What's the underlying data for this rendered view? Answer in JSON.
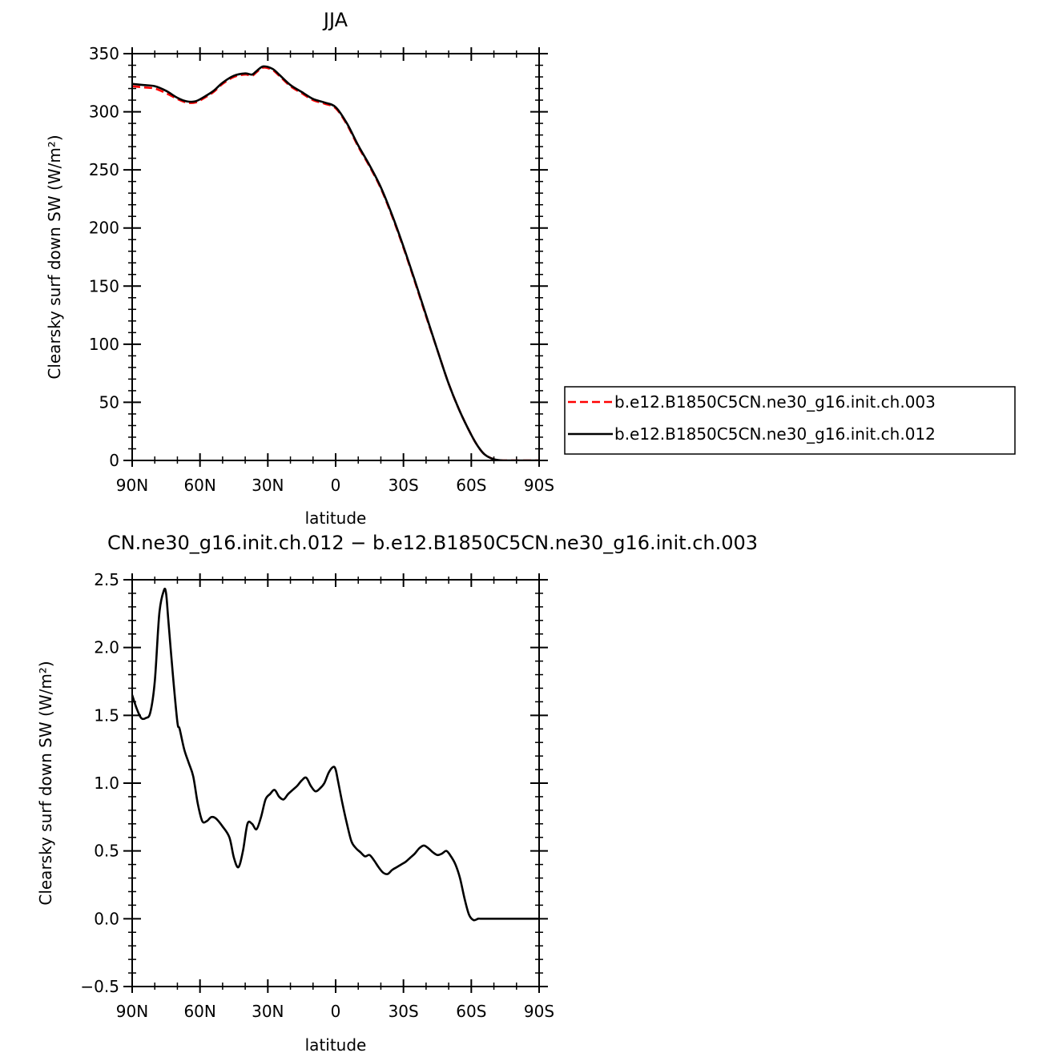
{
  "chart_data": [
    {
      "type": "line",
      "title": "JJA",
      "xlabel": "latitude",
      "ylabel": "Clearsky surf down SW (W/m²)",
      "xlim": [
        90,
        -90
      ],
      "ylim": [
        0,
        350
      ],
      "xticks": [
        90,
        60,
        30,
        0,
        -30,
        -60,
        -90
      ],
      "xtick_labels": [
        "90N",
        "60N",
        "30N",
        "0",
        "30S",
        "60S",
        "90S"
      ],
      "yticks": [
        0,
        50,
        100,
        150,
        200,
        250,
        300,
        350
      ],
      "ytick_labels": [
        "0",
        "50",
        "100",
        "150",
        "200",
        "250",
        "300",
        "350"
      ],
      "legend": "right",
      "series": [
        {
          "name": "b.e12.B1850C5CN.ne30_g16.init.ch.003",
          "color": "#ff0000",
          "dash": "dashed",
          "x": [
            90,
            85,
            80,
            75,
            70,
            66,
            62,
            58,
            54,
            50,
            45,
            40,
            37,
            35,
            32,
            28,
            25,
            20,
            15,
            10,
            5,
            0,
            -5,
            -10,
            -15,
            -20,
            -25,
            -30,
            -35,
            -40,
            -45,
            -50,
            -55,
            -60,
            -63,
            -66,
            -70,
            -74,
            -78,
            -82,
            -86,
            -90
          ],
          "y": [
            322,
            321,
            320,
            316,
            311,
            308,
            308,
            312,
            317,
            324,
            330,
            332,
            331,
            334,
            338,
            336,
            331,
            322,
            316,
            310,
            307,
            303,
            289,
            270,
            253,
            234,
            210,
            183,
            154,
            124,
            95,
            66,
            42,
            22,
            12,
            5,
            1,
            0,
            0,
            0,
            0,
            0
          ]
        },
        {
          "name": "b.e12.B1850C5CN.ne30_g16.init.ch.012",
          "color": "#000000",
          "dash": "solid",
          "x": [
            90,
            85,
            80,
            75,
            70,
            66,
            62,
            58,
            54,
            50,
            45,
            40,
            37,
            35,
            32,
            28,
            25,
            20,
            15,
            10,
            5,
            0,
            -5,
            -10,
            -15,
            -20,
            -25,
            -30,
            -35,
            -40,
            -45,
            -50,
            -55,
            -60,
            -63,
            -66,
            -70,
            -74,
            -78,
            -82,
            -86,
            -90
          ],
          "y": [
            324,
            323,
            322,
            318,
            312,
            309,
            309,
            313,
            318,
            325,
            331,
            333,
            332,
            335,
            339,
            337,
            332,
            323,
            317,
            311,
            308,
            304,
            290,
            271,
            254,
            235,
            211,
            184,
            155,
            125,
            95,
            66,
            42,
            22,
            12,
            5,
            1,
            0,
            0,
            0,
            0,
            0
          ]
        }
      ]
    },
    {
      "type": "line",
      "title": "CN.ne30_g16.init.ch.012 − b.e12.B1850C5CN.ne30_g16.init.ch.003",
      "xlabel": "latitude",
      "ylabel": "Clearsky surf down SW (W/m²)",
      "xlim": [
        90,
        -90
      ],
      "ylim": [
        -0.5,
        2.5
      ],
      "xticks": [
        90,
        60,
        30,
        0,
        -30,
        -60,
        -90
      ],
      "xtick_labels": [
        "90N",
        "60N",
        "30N",
        "0",
        "30S",
        "60S",
        "90S"
      ],
      "yticks": [
        -0.5,
        0.0,
        0.5,
        1.0,
        1.5,
        2.0,
        2.5
      ],
      "ytick_labels": [
        "−0.5",
        "0.0",
        "0.5",
        "1.0",
        "1.5",
        "2.0",
        "2.5"
      ],
      "series": [
        {
          "color": "#000000",
          "dash": "solid",
          "x": [
            90,
            88,
            86,
            84,
            82,
            80,
            78,
            76,
            75,
            74,
            72,
            70,
            69,
            67,
            65,
            63,
            61,
            59,
            57,
            55,
            53,
            50,
            47,
            45,
            43,
            41,
            39,
            37,
            35,
            33,
            31,
            29,
            27,
            25,
            23,
            21,
            19,
            17,
            15,
            13,
            11,
            9,
            7,
            5,
            3,
            1,
            0,
            -1,
            -3,
            -5,
            -7,
            -9,
            -11,
            -13,
            -15,
            -17,
            -19,
            -21,
            -23,
            -25,
            -27,
            -29,
            -31,
            -33,
            -35,
            -37,
            -39,
            -41,
            -43,
            -45,
            -47,
            -49,
            -51,
            -53,
            -55,
            -57,
            -59,
            -61,
            -63,
            -64,
            -65,
            -66,
            -68,
            -70,
            -75,
            -80,
            -85,
            -90
          ],
          "y": [
            1.65,
            1.55,
            1.48,
            1.48,
            1.52,
            1.75,
            2.25,
            2.42,
            2.4,
            2.2,
            1.8,
            1.45,
            1.4,
            1.25,
            1.15,
            1.05,
            0.85,
            0.72,
            0.72,
            0.75,
            0.74,
            0.68,
            0.6,
            0.45,
            0.38,
            0.5,
            0.7,
            0.7,
            0.66,
            0.75,
            0.88,
            0.92,
            0.95,
            0.9,
            0.88,
            0.92,
            0.95,
            0.98,
            1.02,
            1.04,
            0.98,
            0.94,
            0.96,
            1.0,
            1.08,
            1.12,
            1.1,
            1.02,
            0.85,
            0.7,
            0.57,
            0.52,
            0.49,
            0.46,
            0.47,
            0.43,
            0.38,
            0.34,
            0.33,
            0.36,
            0.38,
            0.4,
            0.42,
            0.45,
            0.48,
            0.52,
            0.54,
            0.52,
            0.49,
            0.47,
            0.48,
            0.5,
            0.46,
            0.4,
            0.3,
            0.15,
            0.03,
            -0.01,
            0.0,
            0.0,
            0.0,
            0.0,
            0.0,
            0.0,
            0.0,
            0.0,
            0.0,
            0.0
          ]
        }
      ]
    }
  ]
}
